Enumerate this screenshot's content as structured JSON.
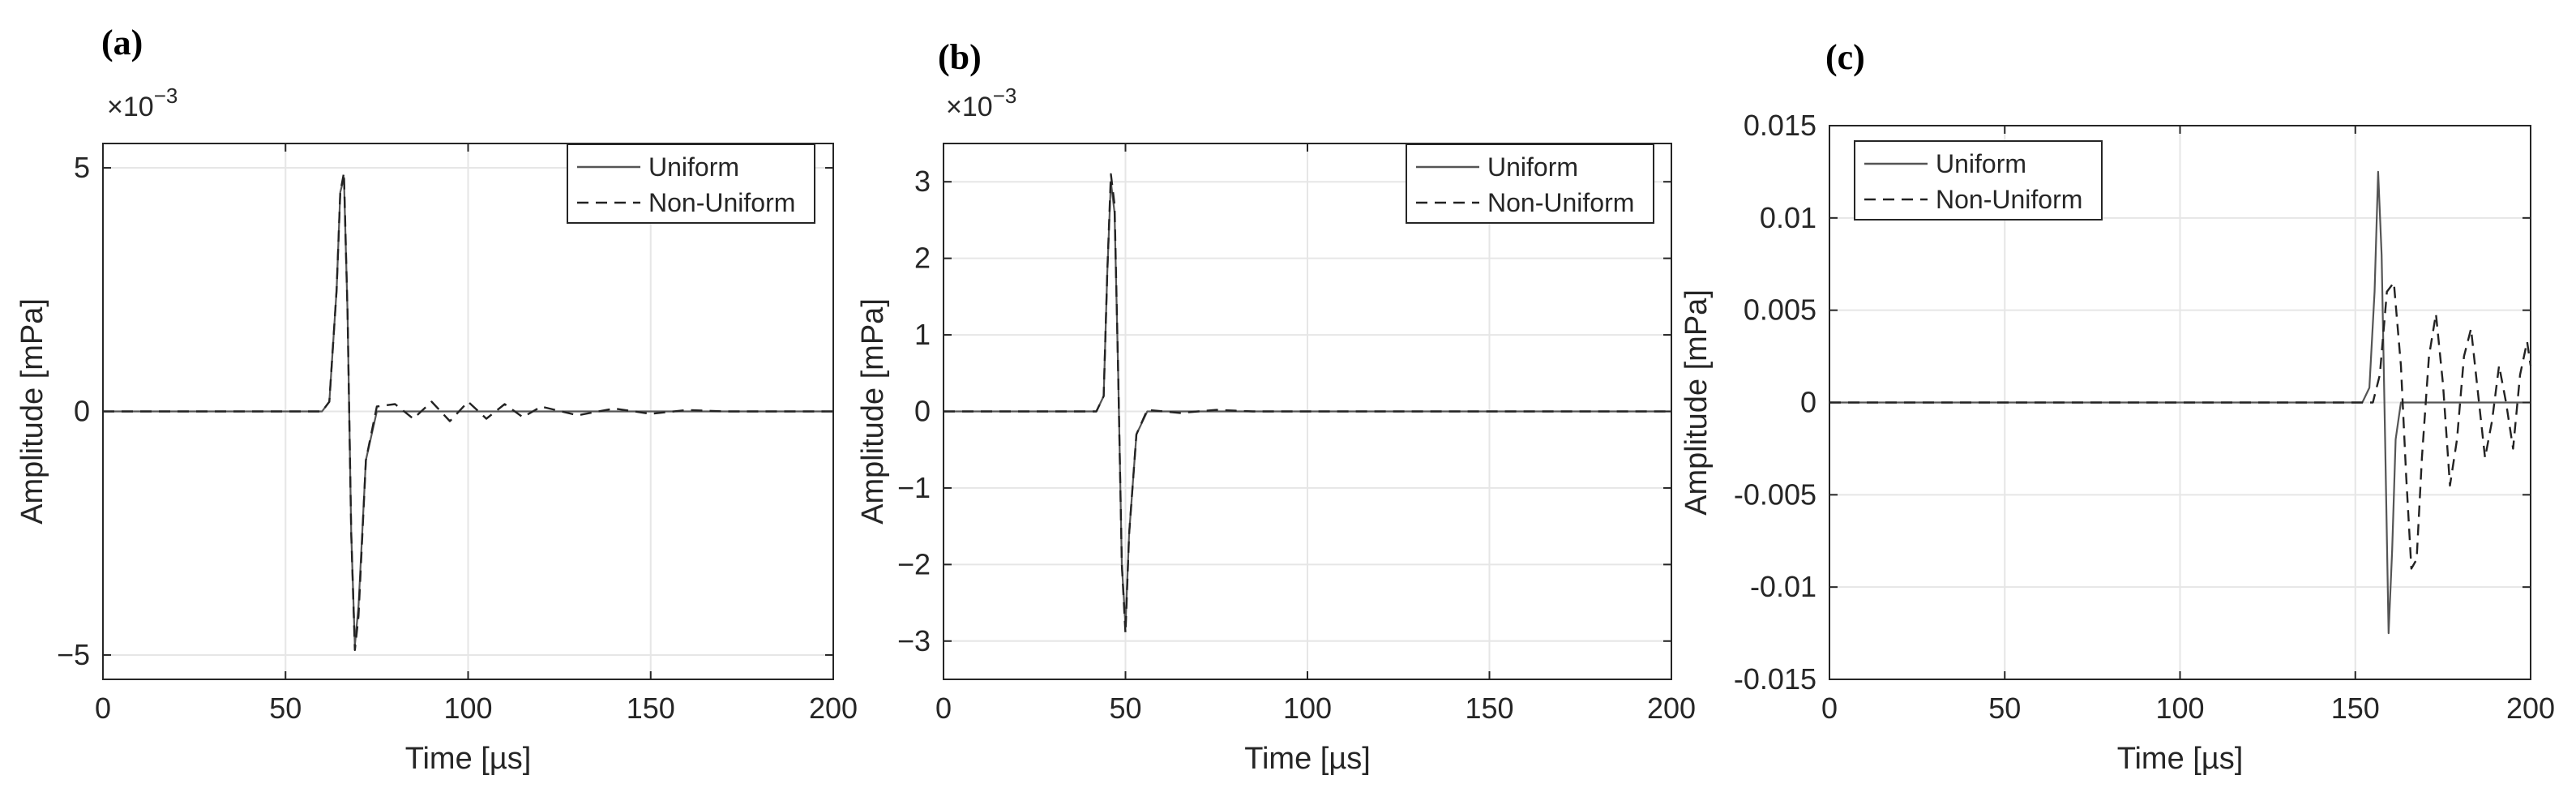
{
  "figure": {
    "panels": [
      {
        "label": "(a)",
        "exponent_prefix": "×10",
        "exponent_power": "−3"
      },
      {
        "label": "(b)",
        "exponent_prefix": "×10",
        "exponent_power": "−3"
      },
      {
        "label": "(c)",
        "exponent_prefix": "",
        "exponent_power": ""
      }
    ]
  },
  "chart_data": [
    {
      "type": "line",
      "panel": "(a)",
      "xlabel": "Time [µs]",
      "ylabel": "Amplitude [mPa]",
      "xlim": [
        0,
        200
      ],
      "ylim": [
        -5.5,
        5.5
      ],
      "xticks": [
        0,
        50,
        100,
        150,
        200
      ],
      "xtick_labels": [
        "0",
        "50",
        "100",
        "150",
        "200"
      ],
      "yticks": [
        -5,
        0,
        5
      ],
      "ytick_labels": [
        "−5",
        "0",
        "5"
      ],
      "y_multiplier": "×10^-3",
      "grid": true,
      "legend_position": "top-right",
      "series": [
        {
          "name": "Uniform",
          "style": "solid",
          "x": [
            0,
            60,
            62,
            64,
            65,
            66,
            67,
            68,
            69,
            70,
            72,
            75,
            200
          ],
          "y": [
            0,
            0,
            0.2,
            2.5,
            4.5,
            4.8,
            2.0,
            -2.5,
            -4.8,
            -4.0,
            -1.0,
            0,
            0
          ]
        },
        {
          "name": "Non-Uniform",
          "style": "dashed",
          "x": [
            0,
            60,
            62,
            64,
            65,
            66,
            67,
            68,
            69,
            70,
            72,
            75,
            80,
            85,
            90,
            95,
            100,
            105,
            110,
            115,
            120,
            130,
            140,
            150,
            160,
            170,
            200
          ],
          "y": [
            0,
            0,
            0.2,
            2.5,
            4.5,
            4.9,
            2.0,
            -2.5,
            -4.9,
            -4.2,
            -1.0,
            0.1,
            0.15,
            -0.15,
            0.2,
            -0.2,
            0.2,
            -0.15,
            0.15,
            -0.12,
            0.1,
            -0.08,
            0.06,
            -0.05,
            0.03,
            0,
            0
          ]
        }
      ]
    },
    {
      "type": "line",
      "panel": "(b)",
      "xlabel": "Time [µs]",
      "ylabel": "Amplitude [mPa]",
      "xlim": [
        0,
        200
      ],
      "ylim": [
        -3.5,
        3.5
      ],
      "xticks": [
        0,
        50,
        100,
        150,
        200
      ],
      "xtick_labels": [
        "0",
        "50",
        "100",
        "150",
        "200"
      ],
      "yticks": [
        -3,
        -2,
        -1,
        0,
        1,
        2,
        3
      ],
      "ytick_labels": [
        "−3",
        "−2",
        "−1",
        "0",
        "1",
        "2",
        "3"
      ],
      "y_multiplier": "×10^-3",
      "grid": true,
      "legend_position": "top-right",
      "series": [
        {
          "name": "Uniform",
          "style": "solid",
          "x": [
            0,
            42,
            44,
            45,
            46,
            47,
            48,
            49,
            50,
            51,
            53,
            56,
            200
          ],
          "y": [
            0,
            0,
            0.2,
            1.8,
            3.0,
            2.6,
            0.5,
            -2.0,
            -2.8,
            -1.6,
            -0.3,
            0,
            0
          ]
        },
        {
          "name": "Non-Uniform",
          "style": "dashed",
          "x": [
            0,
            42,
            44,
            45,
            46,
            47,
            48,
            49,
            50,
            51,
            53,
            56,
            65,
            75,
            85,
            200
          ],
          "y": [
            0,
            0,
            0.2,
            1.8,
            3.1,
            2.7,
            0.5,
            -2.0,
            -2.9,
            -1.6,
            -0.3,
            0.02,
            -0.02,
            0.02,
            0,
            0
          ]
        }
      ]
    },
    {
      "type": "line",
      "panel": "(c)",
      "xlabel": "Time [µs]",
      "ylabel": "Amplitude [mPa]",
      "xlim": [
        0,
        200
      ],
      "ylim": [
        -0.015,
        0.015
      ],
      "xticks": [
        0,
        50,
        100,
        150,
        200
      ],
      "xtick_labels": [
        "0",
        "50",
        "100",
        "150",
        "200"
      ],
      "yticks": [
        -0.015,
        -0.01,
        -0.005,
        0,
        0.005,
        0.01,
        0.015
      ],
      "ytick_labels": [
        "-0.015",
        "-0.01",
        "-0.005",
        "0",
        "0.005",
        "0.01",
        "0.015"
      ],
      "grid": true,
      "legend_position": "top-left",
      "series": [
        {
          "name": "Uniform",
          "style": "solid",
          "x": [
            0,
            152,
            154,
            155.5,
            156.5,
            157.5,
            158.5,
            159.5,
            160.5,
            161.5,
            163,
            165,
            200
          ],
          "y": [
            0,
            0,
            0.0008,
            0.006,
            0.0125,
            0.008,
            -0.002,
            -0.0125,
            -0.008,
            -0.002,
            0,
            0,
            0
          ]
        },
        {
          "name": "Non-Uniform",
          "style": "dashed",
          "x": [
            0,
            155,
            157,
            159,
            161,
            163,
            164.5,
            166,
            167.5,
            169,
            171,
            173,
            175,
            177,
            179,
            181,
            183,
            185,
            187,
            189,
            191,
            193,
            195,
            197,
            199,
            200
          ],
          "y": [
            0,
            0,
            0.0015,
            0.006,
            0.0065,
            0.002,
            -0.004,
            -0.009,
            -0.0085,
            -0.003,
            0.0025,
            0.0048,
            0.001,
            -0.0045,
            -0.002,
            0.0025,
            0.004,
            0.0005,
            -0.003,
            -0.001,
            0.002,
            0.0,
            -0.0025,
            0.0015,
            0.0033,
            0.002
          ]
        }
      ]
    }
  ]
}
